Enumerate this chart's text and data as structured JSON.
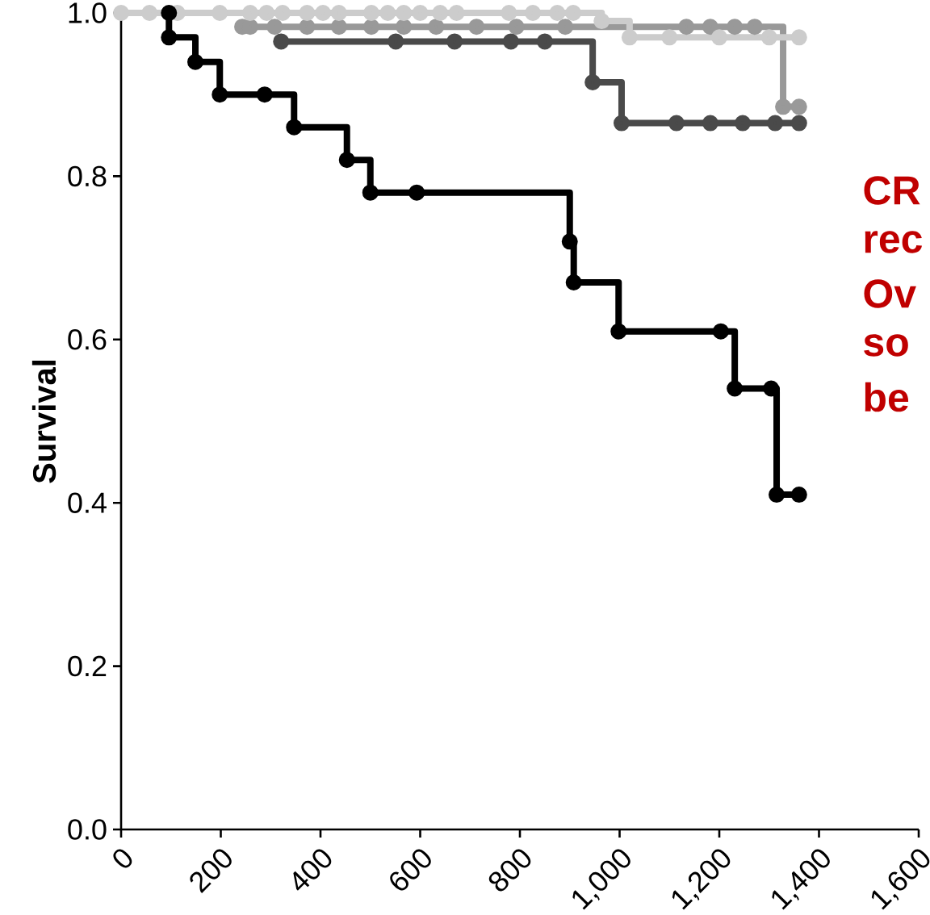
{
  "chart_data": {
    "type": "step",
    "ylabel": "Survival",
    "xlim": [
      0,
      1600
    ],
    "ylim": [
      0,
      1.0
    ],
    "xticks": [
      0,
      200,
      400,
      600,
      800,
      {
        "value": 1000,
        "label": "1,000"
      },
      {
        "value": 1200,
        "label": "1,200"
      },
      {
        "value": 1400,
        "label": "1,400"
      },
      {
        "value": 1600,
        "label": "1,600"
      }
    ],
    "yticks": [
      {
        "value": 0,
        "label": "0.0"
      },
      0.2,
      0.4,
      0.6,
      0.8,
      {
        "value": 1.0,
        "label": "1.0"
      }
    ],
    "marker": "circle",
    "annotations": [
      "CR",
      "rec",
      "Ov",
      "so",
      "be"
    ],
    "series": [
      {
        "color": "#999999",
        "x": [
          243,
          259,
          308,
          373,
          437,
          502,
          567,
          632,
          713,
          793,
          891,
          1134,
          1182,
          1231,
          1271,
          1328,
          1360
        ],
        "values": [
          0.983,
          0.983,
          0.983,
          0.983,
          0.983,
          0.983,
          0.983,
          0.983,
          0.983,
          0.983,
          0.983,
          0.983,
          0.983,
          0.983,
          0.983,
          0.885,
          0.885
        ]
      },
      {
        "color": "#4a4a4a",
        "x": [
          321,
          551,
          669,
          782,
          850,
          946,
          1004,
          1114,
          1182,
          1247,
          1312,
          1360
        ],
        "values": [
          0.965,
          0.965,
          0.965,
          0.965,
          0.965,
          0.915,
          0.865,
          0.865,
          0.865,
          0.865,
          0.865,
          0.865
        ]
      },
      {
        "color": "#cccccc",
        "x": [
          0,
          57,
          113,
          198,
          259,
          292,
          324,
          373,
          405,
          437,
          502,
          535,
          567,
          600,
          640,
          673,
          778,
          826,
          875,
          907,
          964,
          1020,
          1100,
          1200,
          1300,
          1360
        ],
        "values": [
          1,
          1,
          1,
          1,
          1,
          1,
          1,
          1,
          1,
          1,
          1,
          1,
          1,
          1,
          1,
          1,
          1,
          1,
          1,
          1,
          0.99,
          0.97,
          0.97,
          0.97,
          0.97,
          0.97
        ]
      },
      {
        "color": "#000000",
        "x": [
          96,
          96,
          149,
          198,
          288,
          347,
          453,
          500,
          593,
          900,
          908,
          998,
          1203,
          1231,
          1304,
          1315,
          1360
        ],
        "values": [
          1,
          0.97,
          0.94,
          0.9,
          0.9,
          0.86,
          0.82,
          0.78,
          0.78,
          0.72,
          0.67,
          0.61,
          0.61,
          0.54,
          0.54,
          0.41,
          0.41
        ]
      }
    ]
  }
}
